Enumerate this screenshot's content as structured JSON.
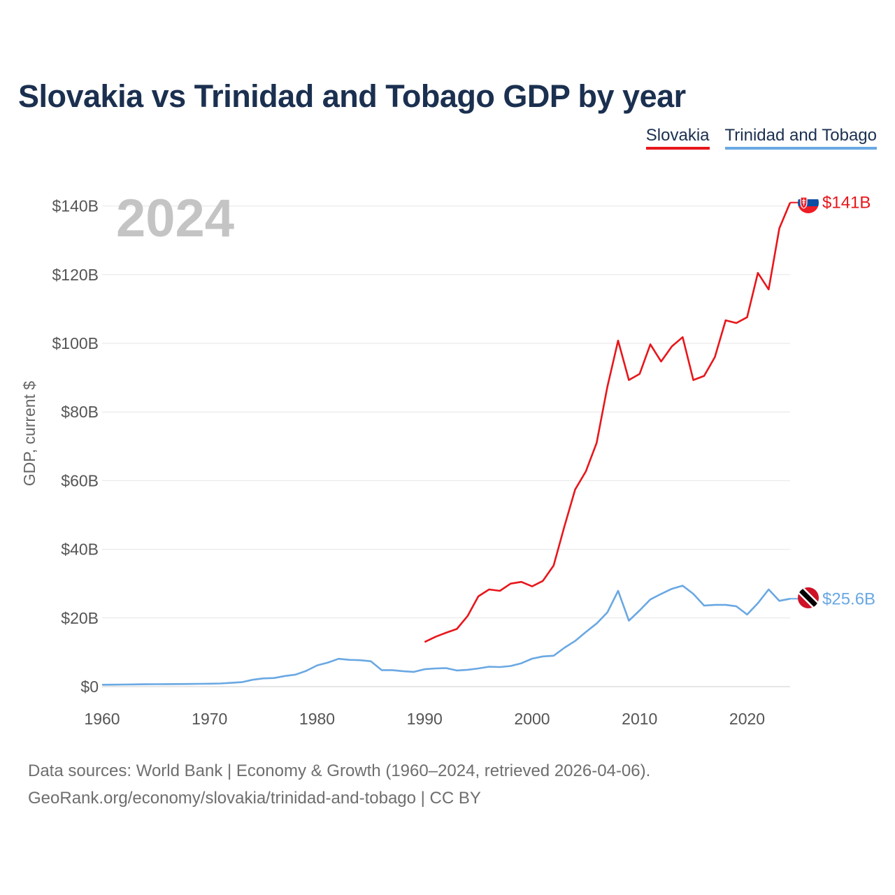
{
  "title": "Slovakia vs Trinidad and Tobago GDP by year",
  "legend": {
    "slovakia": "Slovakia",
    "tt": "Trinidad and Tobago"
  },
  "footer": {
    "line1": "Data sources: World Bank | Economy & Growth (1960–2024, retrieved 2026-04-06).",
    "line2": "GeoRank.org/economy/slovakia/trinidad-and-tobago | CC BY"
  },
  "colors": {
    "slovakia": "#e8161b",
    "tt": "#6aa8e3",
    "grid": "#e6e6e6",
    "title": "#1b3050"
  },
  "chart_data": {
    "type": "line",
    "title": "Slovakia vs Trinidad and Tobago GDP by year",
    "year_label": "2024",
    "ylabel": "GDP, current $",
    "xlabel": "",
    "xlim": [
      1960,
      2024
    ],
    "ylim": [
      0,
      150
    ],
    "x_ticks": [
      1960,
      1970,
      1980,
      1990,
      2000,
      2010,
      2020
    ],
    "x_tick_labels": [
      "1960",
      "1970",
      "1980",
      "1990",
      "2000",
      "2010",
      "2020"
    ],
    "y_ticks": [
      0,
      20,
      40,
      60,
      80,
      100,
      120,
      140
    ],
    "y_tick_labels": [
      "$0",
      "$20B",
      "$40B",
      "$60B",
      "$80B",
      "$100B",
      "$120B",
      "$140B"
    ],
    "grid": true,
    "legend_position": "top-right",
    "series": [
      {
        "name": "Slovakia",
        "color": "#e8161b",
        "end_label": "$141B",
        "x": [
          1990,
          1991,
          1992,
          1993,
          1994,
          1995,
          1996,
          1997,
          1998,
          1999,
          2000,
          2001,
          2002,
          2003,
          2004,
          2005,
          2006,
          2007,
          2008,
          2009,
          2010,
          2011,
          2012,
          2013,
          2014,
          2015,
          2016,
          2017,
          2018,
          2019,
          2020,
          2021,
          2022,
          2023,
          2024
        ],
        "values": [
          13.0,
          14.5,
          15.7,
          16.8,
          20.6,
          26.3,
          28.3,
          27.9,
          30.0,
          30.5,
          29.2,
          30.8,
          35.3,
          46.6,
          57.4,
          62.7,
          71.0,
          87.3,
          100.8,
          89.3,
          91.1,
          99.7,
          94.7,
          99.1,
          101.8,
          89.3,
          90.5,
          96.0,
          106.7,
          105.9,
          107.6,
          120.5,
          115.7,
          133.5,
          141.0
        ]
      },
      {
        "name": "Trinidad and Tobago",
        "color": "#6aa8e3",
        "end_label": "$25.6B",
        "x": [
          1960,
          1961,
          1962,
          1963,
          1964,
          1965,
          1966,
          1967,
          1968,
          1969,
          1970,
          1971,
          1972,
          1973,
          1974,
          1975,
          1976,
          1977,
          1978,
          1979,
          1980,
          1981,
          1982,
          1983,
          1984,
          1985,
          1986,
          1987,
          1988,
          1989,
          1990,
          1991,
          1992,
          1993,
          1994,
          1995,
          1996,
          1997,
          1998,
          1999,
          2000,
          2001,
          2002,
          2003,
          2004,
          2005,
          2006,
          2007,
          2008,
          2009,
          2010,
          2011,
          2012,
          2013,
          2014,
          2015,
          2016,
          2017,
          2018,
          2019,
          2020,
          2021,
          2022,
          2023,
          2024
        ],
        "values": [
          0.54,
          0.57,
          0.61,
          0.65,
          0.7,
          0.72,
          0.74,
          0.76,
          0.78,
          0.82,
          0.85,
          0.92,
          1.1,
          1.3,
          2.0,
          2.4,
          2.5,
          3.1,
          3.5,
          4.6,
          6.2,
          7.0,
          8.1,
          7.8,
          7.7,
          7.4,
          4.8,
          4.8,
          4.5,
          4.3,
          5.07,
          5.3,
          5.4,
          4.7,
          4.9,
          5.3,
          5.8,
          5.7,
          6.0,
          6.8,
          8.15,
          8.8,
          9.0,
          11.3,
          13.3,
          15.9,
          18.4,
          21.6,
          27.9,
          19.2,
          22.2,
          25.4,
          27.0,
          28.5,
          29.4,
          27.0,
          23.6,
          23.8,
          23.8,
          23.4,
          21.0,
          24.3,
          28.3,
          25.0,
          25.6
        ]
      }
    ]
  }
}
